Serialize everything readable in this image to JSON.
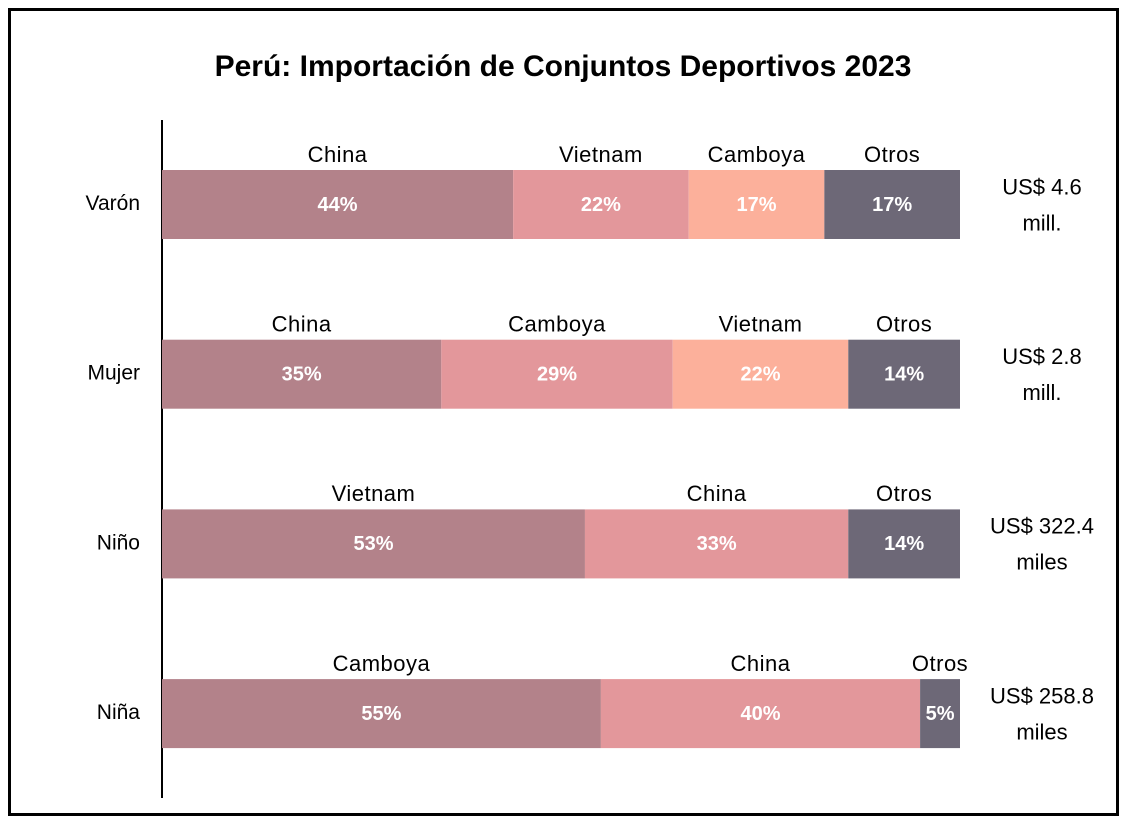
{
  "chart_data": {
    "type": "bar",
    "orientation": "horizontal",
    "stacked": true,
    "title": "Perú: Importación de Conjuntos Deportivos 2023",
    "categories": [
      "Varón",
      "Mujer",
      "Niño",
      "Niña"
    ],
    "xlim": [
      0,
      100
    ],
    "rows": [
      {
        "segments": [
          {
            "name": "China",
            "value": 44,
            "value_label": "44%",
            "color": "#b3828a"
          },
          {
            "name": "Vietnam",
            "value": 22,
            "value_label": "22%",
            "color": "#e3979b"
          },
          {
            "name": "Camboya",
            "value": 17,
            "value_label": "17%",
            "color": "#fcb09b"
          },
          {
            "name": "Otros",
            "value": 17,
            "value_label": "17%",
            "color": "#6d6877"
          }
        ],
        "total": [
          "US$ 4.6",
          "mill."
        ]
      },
      {
        "segments": [
          {
            "name": "China",
            "value": 35,
            "value_label": "35%",
            "color": "#b3828a"
          },
          {
            "name": "Camboya",
            "value": 29,
            "value_label": "29%",
            "color": "#e3979b"
          },
          {
            "name": "Vietnam",
            "value": 22,
            "value_label": "22%",
            "color": "#fcb09b"
          },
          {
            "name": "Otros",
            "value": 14,
            "value_label": "14%",
            "color": "#6d6877"
          }
        ],
        "total": [
          "US$ 2.8",
          "mill."
        ]
      },
      {
        "segments": [
          {
            "name": "Vietnam",
            "value": 53,
            "value_label": "53%",
            "color": "#b3828a"
          },
          {
            "name": "China",
            "value": 33,
            "value_label": "33%",
            "color": "#e3979b"
          },
          {
            "name": "Otros",
            "value": 14,
            "value_label": "14%",
            "color": "#6d6877"
          }
        ],
        "total": [
          "US$ 322.4",
          "miles"
        ]
      },
      {
        "segments": [
          {
            "name": "Camboya",
            "value": 55,
            "value_label": "55%",
            "color": "#b3828a"
          },
          {
            "name": "China",
            "value": 40,
            "value_label": "40%",
            "color": "#e3979b"
          },
          {
            "name": "Otros",
            "value": 5,
            "value_label": "5%",
            "color": "#6d6877"
          }
        ],
        "total": [
          "US$ 258.8",
          "miles"
        ]
      }
    ]
  }
}
